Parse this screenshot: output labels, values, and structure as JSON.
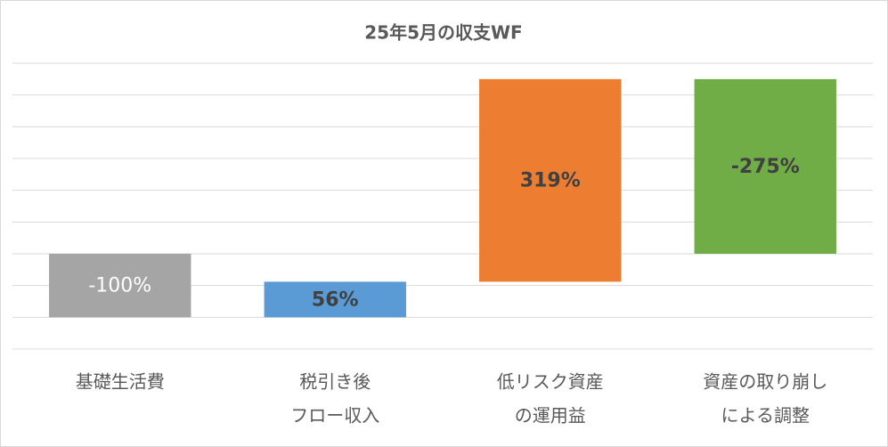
{
  "chart_data": {
    "type": "waterfall",
    "title": "25年5月の収支WF",
    "categories": [
      [
        "基礎生活費"
      ],
      [
        "税引き後",
        "フロー収入"
      ],
      [
        "低リスク資産",
        "の運用益"
      ],
      [
        "資産の取り崩し",
        "による調整"
      ]
    ],
    "values": [
      -100,
      56,
      319,
      -275
    ],
    "value_labels": [
      "-100%",
      "56%",
      "319%",
      "-275%"
    ],
    "colors": [
      "#a5a5a5",
      "#5b9bd5",
      "#ed7d31",
      "#70ad47"
    ],
    "label_colors": [
      "#ffffff",
      "#404040",
      "#404040",
      "#404040"
    ],
    "ylim": [
      -50,
      400
    ],
    "yticks": [
      -50,
      0,
      50,
      100,
      150,
      200,
      250,
      300,
      350,
      400
    ],
    "grid": true
  }
}
